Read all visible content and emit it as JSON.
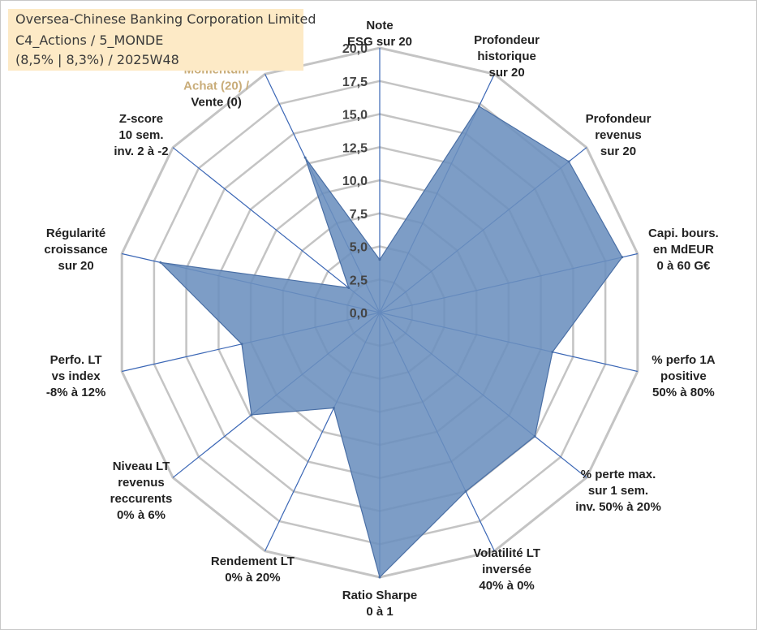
{
  "header": {
    "company": "Oversea-Chinese Banking Corporation Limited",
    "category": "C4_Actions / 5_MONDE",
    "stats": "(8,5% | 8,3%) / 2025W48"
  },
  "colors": {
    "title_background": "#fdeac6",
    "area_fill": "#6b8fbe",
    "area_stroke": "#4a6fa5",
    "spoke": "#3a66b5",
    "grid": "#c4c4c4",
    "momentum_label": "#c9ad7a"
  },
  "chart_data": {
    "type": "radar",
    "title": "Oversea-Chinese Banking Corporation Limited",
    "rmin": 0,
    "rmax": 20,
    "ticks": [
      "0,0",
      "2,5",
      "5,0",
      "7,5",
      "10,0",
      "12,5",
      "15,0",
      "17,5",
      "20,0"
    ],
    "axes": [
      {
        "lines": [
          "Note",
          "ESG sur 20"
        ],
        "value": 4
      },
      {
        "lines": [
          "Profondeur",
          "historique",
          "sur 20"
        ],
        "value": 17.3
      },
      {
        "lines": [
          "Profondeur",
          "revenus",
          "sur 20"
        ],
        "value": 18.3
      },
      {
        "lines": [
          "Capi. bours.",
          "en MdEUR",
          "0 à 60 G€"
        ],
        "value": 18.8
      },
      {
        "lines": [
          "% perfo 1A",
          "positive",
          "50% à 80%"
        ],
        "value": 13.4
      },
      {
        "lines": [
          "% perte max.",
          "sur 1 sem.",
          "inv. 50% à 20%"
        ],
        "value": 15
      },
      {
        "lines": [
          "Volatilité LT",
          "inversée",
          "40% à 0%"
        ],
        "value": 15
      },
      {
        "lines": [
          "Ratio Sharpe",
          "0 à 1"
        ],
        "value": 20
      },
      {
        "lines": [
          "Rendement LT",
          "0% à 20%"
        ],
        "value": 8
      },
      {
        "lines": [
          "Niveau LT",
          "revenus",
          "reccurents",
          "0% à 6%"
        ],
        "value": 12.4
      },
      {
        "lines": [
          "Perfo. LT",
          "vs index",
          "-8% à 12%"
        ],
        "value": 10.7
      },
      {
        "lines": [
          "Régularité",
          "croissance",
          "sur 20"
        ],
        "value": 17
      },
      {
        "lines": [
          "Z-score",
          "10 sem.",
          "inv. 2 à -2"
        ],
        "value": 3
      },
      {
        "lines": [
          "Momentum",
          "Achat (20) /",
          "Vente (0)"
        ],
        "value": 13
      }
    ]
  }
}
